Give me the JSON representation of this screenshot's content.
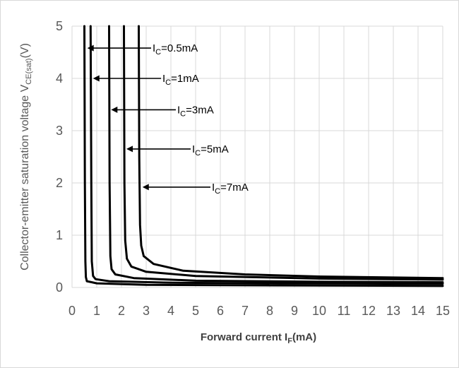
{
  "chart_data": {
    "type": "line",
    "xlabel_main": "Forward current I",
    "xlabel_sub": "F",
    "xlabel_unit": "(mA)",
    "ylabel_main": "Collector-emitter saturation voltage V",
    "ylabel_sub": "CE(sat)",
    "ylabel_unit": "(V)",
    "xlim": [
      0,
      15
    ],
    "ylim": [
      0,
      5
    ],
    "x_ticks": [
      "0",
      "1",
      "2",
      "3",
      "4",
      "5",
      "6",
      "7",
      "8",
      "9",
      "10",
      "11",
      "12",
      "13",
      "14",
      "15"
    ],
    "y_ticks": [
      "0",
      "1",
      "2",
      "3",
      "4",
      "5"
    ],
    "grid": true,
    "series": [
      {
        "name_main": "I",
        "name_sub": "C",
        "name_value": "=0.5mA",
        "label_at": [
          3.2,
          4.58
        ],
        "arrow_to": [
          0.62,
          4.58
        ],
        "points": [
          [
            0.5,
            5.0
          ],
          [
            0.52,
            2.0
          ],
          [
            0.54,
            0.5
          ],
          [
            0.56,
            0.2
          ],
          [
            0.6,
            0.12
          ],
          [
            1.0,
            0.08
          ],
          [
            3,
            0.05
          ],
          [
            8,
            0.04
          ],
          [
            15,
            0.03
          ]
        ]
      },
      {
        "name_main": "I",
        "name_sub": "C",
        "name_value": "=1mA",
        "label_at": [
          3.6,
          4.0
        ],
        "arrow_to": [
          0.85,
          4.0
        ],
        "points": [
          [
            0.75,
            5.0
          ],
          [
            0.78,
            2.0
          ],
          [
            0.8,
            0.5
          ],
          [
            0.85,
            0.22
          ],
          [
            0.95,
            0.16
          ],
          [
            1.5,
            0.12
          ],
          [
            4,
            0.09
          ],
          [
            9,
            0.08
          ],
          [
            15,
            0.07
          ]
        ]
      },
      {
        "name_main": "I",
        "name_sub": "C",
        "name_value": "=3mA",
        "label_at": [
          4.2,
          3.4
        ],
        "arrow_to": [
          1.58,
          3.4
        ],
        "points": [
          [
            1.5,
            5.0
          ],
          [
            1.52,
            2.0
          ],
          [
            1.55,
            0.6
          ],
          [
            1.6,
            0.35
          ],
          [
            1.75,
            0.25
          ],
          [
            2.5,
            0.18
          ],
          [
            5,
            0.13
          ],
          [
            10,
            0.11
          ],
          [
            15,
            0.1
          ]
        ]
      },
      {
        "name_main": "I",
        "name_sub": "C",
        "name_value": "=5mA",
        "label_at": [
          4.8,
          2.65
        ],
        "arrow_to": [
          2.2,
          2.65
        ],
        "points": [
          [
            2.1,
            5.0
          ],
          [
            2.12,
            2.0
          ],
          [
            2.15,
            0.9
          ],
          [
            2.22,
            0.55
          ],
          [
            2.4,
            0.4
          ],
          [
            3.0,
            0.3
          ],
          [
            5,
            0.22
          ],
          [
            10,
            0.17
          ],
          [
            15,
            0.15
          ]
        ]
      },
      {
        "name_main": "I",
        "name_sub": "C",
        "name_value": "=7mA",
        "label_at": [
          5.6,
          1.92
        ],
        "arrow_to": [
          2.85,
          1.92
        ],
        "points": [
          [
            2.7,
            5.0
          ],
          [
            2.72,
            2.5
          ],
          [
            2.75,
            1.2
          ],
          [
            2.8,
            0.8
          ],
          [
            2.9,
            0.6
          ],
          [
            3.3,
            0.45
          ],
          [
            4.5,
            0.32
          ],
          [
            7,
            0.25
          ],
          [
            10,
            0.21
          ],
          [
            15,
            0.18
          ]
        ]
      }
    ]
  }
}
